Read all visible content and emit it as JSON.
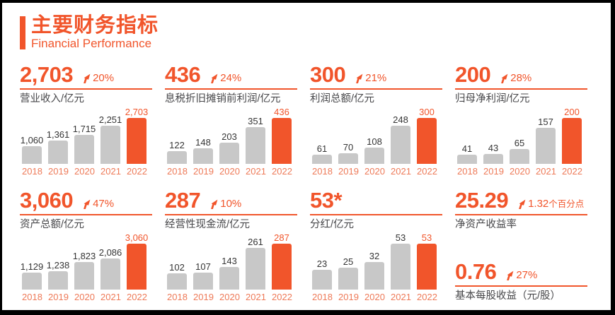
{
  "header": {
    "title": "主要财务指标",
    "subtitle": "Financial Performance"
  },
  "colors": {
    "accent": "#f1552b",
    "highlight_bar": "#f1582b",
    "gray_bar": "#c8c8c8",
    "year_label": "#ee7a58",
    "kpi_label_text": "#47474a",
    "bar_value_text": "#353535",
    "frame_border": "#000000",
    "background": "#ffffff"
  },
  "chart_data": [
    {
      "type": "bar",
      "title": "营业收入/亿元",
      "headline": "2,703",
      "change": "20%",
      "categories": [
        "2018",
        "2019",
        "2020",
        "2021",
        "2022"
      ],
      "values": [
        1060,
        1361,
        1715,
        2251,
        2703
      ],
      "value_labels": [
        "1,060",
        "1,361",
        "1,715",
        "2,251",
        "2,703"
      ],
      "highlight_last": true,
      "ylim": [
        0,
        2703
      ],
      "legend": "off",
      "grid": "off"
    },
    {
      "type": "bar",
      "title": "息税折旧摊销前利润/亿元",
      "headline": "436",
      "change": "24%",
      "categories": [
        "2018",
        "2019",
        "2020",
        "2021",
        "2022"
      ],
      "values": [
        122,
        148,
        203,
        351,
        436
      ],
      "value_labels": [
        "122",
        "148",
        "203",
        "351",
        "436"
      ],
      "highlight_last": true,
      "ylim": [
        0,
        436
      ],
      "legend": "off",
      "grid": "off"
    },
    {
      "type": "bar",
      "title": "利润总额/亿元",
      "headline": "300",
      "change": "21%",
      "categories": [
        "2018",
        "2019",
        "2020",
        "2021",
        "2022"
      ],
      "values": [
        61,
        70,
        108,
        248,
        300
      ],
      "value_labels": [
        "61",
        "70",
        "108",
        "248",
        "300"
      ],
      "highlight_last": true,
      "ylim": [
        0,
        300
      ],
      "legend": "off",
      "grid": "off"
    },
    {
      "type": "bar",
      "title": "归母净利润/亿元",
      "headline": "200",
      "change": "28%",
      "categories": [
        "2018",
        "2019",
        "2020",
        "2021",
        "2022"
      ],
      "values": [
        41,
        43,
        65,
        157,
        200
      ],
      "value_labels": [
        "41",
        "43",
        "65",
        "157",
        "200"
      ],
      "highlight_last": true,
      "ylim": [
        0,
        200
      ],
      "legend": "off",
      "grid": "off"
    },
    {
      "type": "bar",
      "title": "资产总额/亿元",
      "headline": "3,060",
      "change": "47%",
      "categories": [
        "2018",
        "2019",
        "2020",
        "2021",
        "2022"
      ],
      "values": [
        1129,
        1238,
        1823,
        2086,
        3060
      ],
      "value_labels": [
        "1,129",
        "1,238",
        "1,823",
        "2,086",
        "3,060"
      ],
      "highlight_last": true,
      "ylim": [
        0,
        3060
      ],
      "legend": "off",
      "grid": "off"
    },
    {
      "type": "bar",
      "title": "经营性现金流/亿元",
      "headline": "287",
      "change": "10%",
      "categories": [
        "2018",
        "2019",
        "2020",
        "2021",
        "2022"
      ],
      "values": [
        102,
        107,
        143,
        261,
        287
      ],
      "value_labels": [
        "102",
        "107",
        "143",
        "261",
        "287"
      ],
      "highlight_last": true,
      "ylim": [
        0,
        287
      ],
      "legend": "off",
      "grid": "off"
    },
    {
      "type": "bar",
      "title": "分红/亿元",
      "headline": "53*",
      "change": null,
      "categories": [
        "2018",
        "2019",
        "2020",
        "2021",
        "2022"
      ],
      "values": [
        23,
        25,
        32,
        53,
        53
      ],
      "value_labels": [
        "23",
        "25",
        "32",
        "53",
        "53"
      ],
      "highlight_last": true,
      "ylim": [
        0,
        53
      ],
      "legend": "off",
      "grid": "off"
    }
  ],
  "metrics": {
    "roe": {
      "headline": "25.29",
      "change": "1.32",
      "change_unit": "个百分点",
      "label": "净资产收益率"
    },
    "eps": {
      "headline": "0.76",
      "change": "27%",
      "label": "基本每股收益（元/股）"
    }
  }
}
